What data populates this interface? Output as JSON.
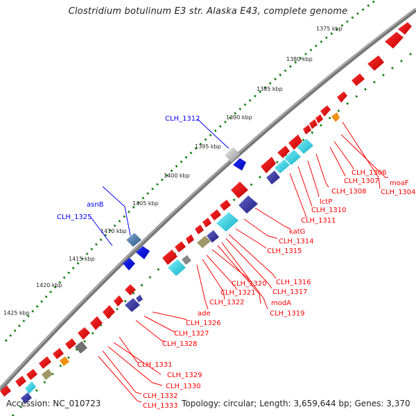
{
  "title": "Clostridium botulinum E3 str. Alaska E43, complete genome",
  "footer": {
    "accession": "Accession: NC_010723",
    "topology": "Topology: circular; Length: 3,659,644 bp; Genes: 3,370"
  },
  "ticks": [
    "1375 kbp",
    "1380 kbp",
    "1385 kbp",
    "1390 kbp",
    "1395 kbp",
    "1400 kbp",
    "1405 kbp",
    "1410 kbp",
    "1415 kbp",
    "1420 kbp",
    "1425 kbp"
  ],
  "blue_labels": [
    "CLH_1312",
    "asnB",
    "CLH_1325"
  ],
  "red_labels": [
    "CLH_1306",
    "moaF",
    "CLH_1307",
    "CLH_1304",
    "CLH_1308",
    "lctP",
    "CLH_1310",
    "CLH_1311",
    "katG",
    "CLH_1314",
    "CLH_1315",
    "CLH_1316",
    "CLH_1320",
    "CLH_1317",
    "CLH_1321",
    "CLH_1322",
    "modA",
    "CLH_1319",
    "ade",
    "CLH_1326",
    "CLH_1327",
    "CLH_1328",
    "CLH_1331",
    "CLH_1329",
    "CLH_1330",
    "CLH_1332",
    "CLH_1333"
  ],
  "colors": {
    "backbone": "#808080",
    "gene_red": "#e00000",
    "gene_blue": "#0010e0",
    "steel": "#4a78a8",
    "cyan": "#18c8d8",
    "navy": "#3030a0",
    "gray": "#b0b0b0",
    "orange": "#f09010",
    "olive": "#a09868",
    "dots": "#10800e",
    "label_red": "#ff0000",
    "label_blue": "#0000ff"
  }
}
